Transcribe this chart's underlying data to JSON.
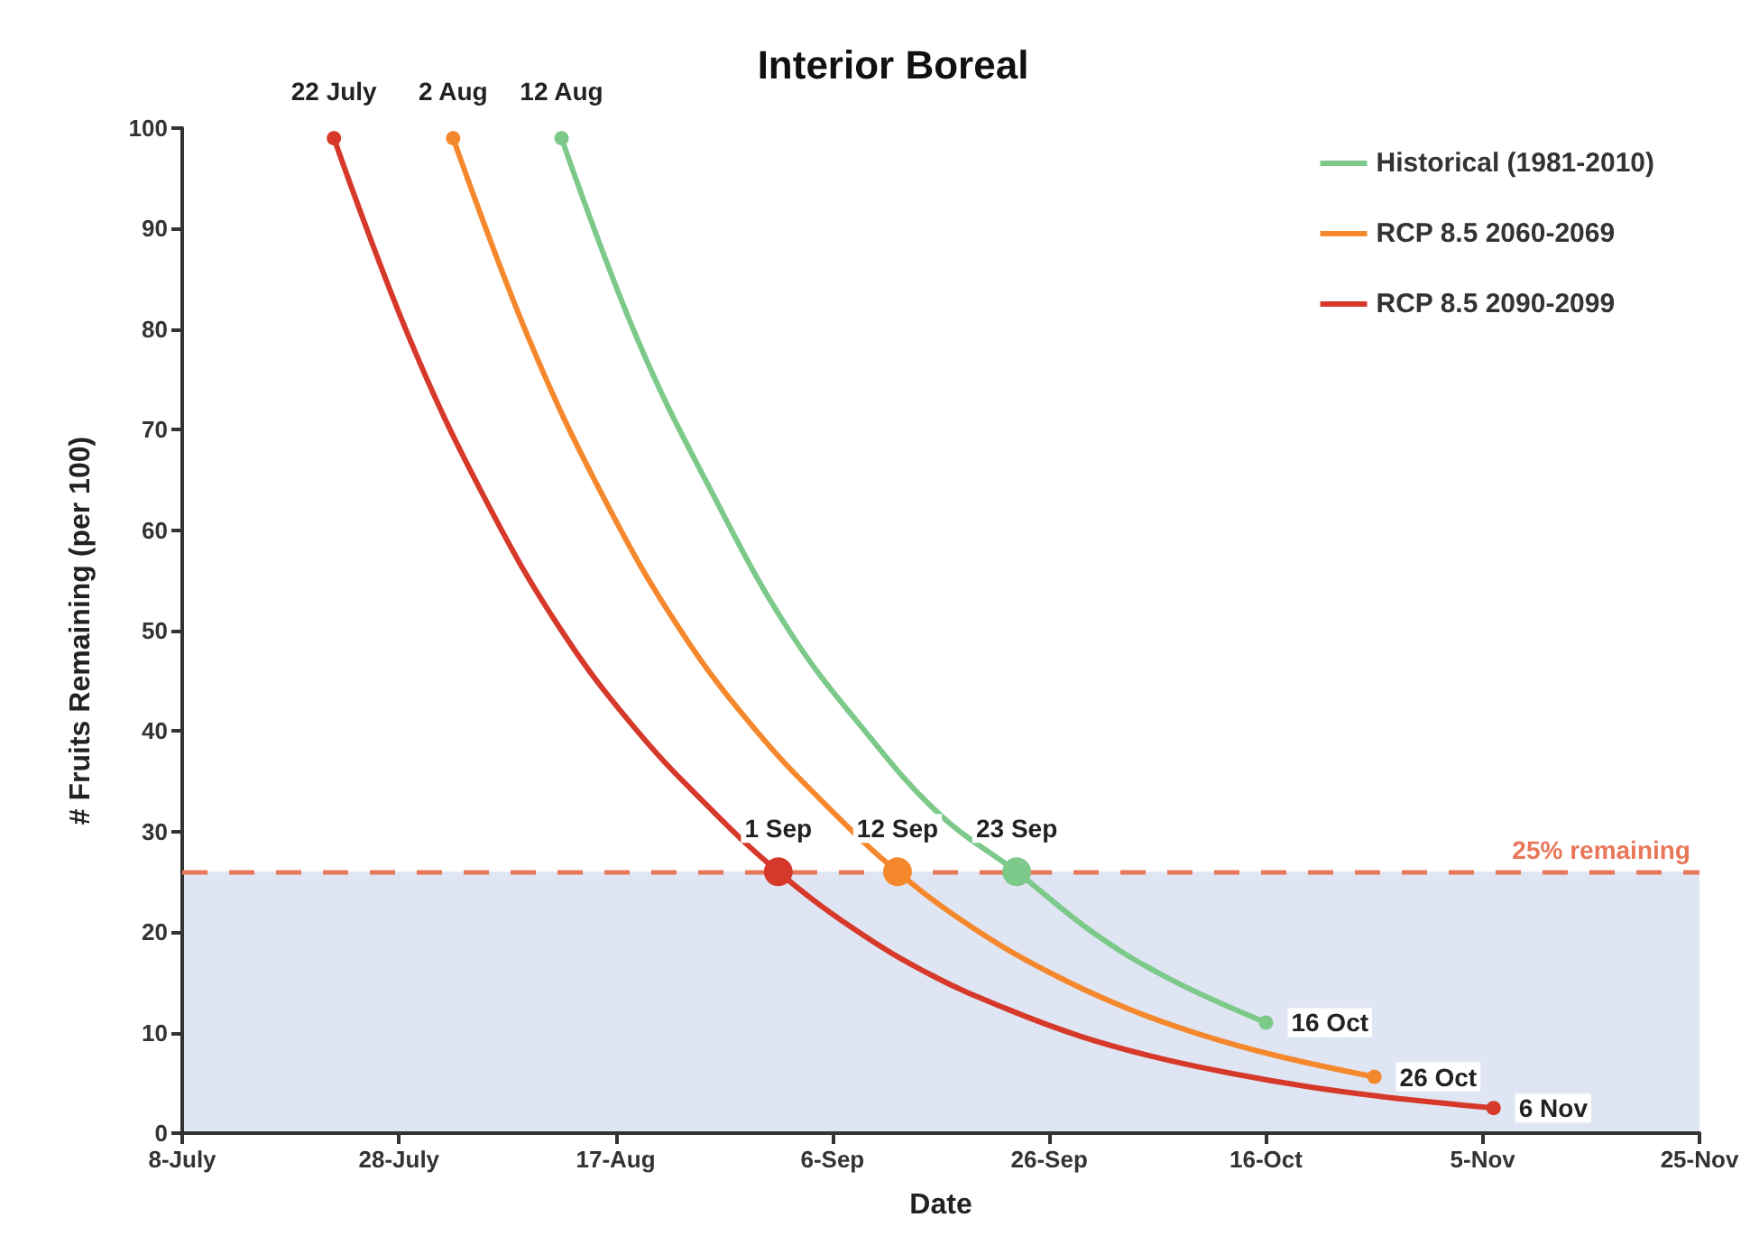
{
  "chart_data": {
    "type": "line",
    "title": "Interior Boreal",
    "xlabel": "Date",
    "ylabel": "# Fruits Remaining (per 100)",
    "xlim": [
      "--07-08",
      "--11-25"
    ],
    "xticks": [
      {
        "value": "--07-08",
        "label": "8-July"
      },
      {
        "value": "--07-28",
        "label": "28-July"
      },
      {
        "value": "--08-17",
        "label": "17-Aug"
      },
      {
        "value": "--09-06",
        "label": "6-Sep"
      },
      {
        "value": "--09-26",
        "label": "26-Sep"
      },
      {
        "value": "--10-16",
        "label": "16-Oct"
      },
      {
        "value": "--11-05",
        "label": "5-Nov"
      },
      {
        "value": "--11-25",
        "label": "25-Nov"
      }
    ],
    "ylim": [
      0,
      100
    ],
    "yticks": [
      0,
      10,
      20,
      30,
      40,
      50,
      60,
      70,
      80,
      90,
      100
    ],
    "grid": false,
    "legend": "top right",
    "line_style": "solid",
    "series": [
      {
        "name": "Historical (1981-2010)",
        "color": "#7cc98a",
        "x": [
          "--08-12",
          "--08-19",
          "--08-26",
          "--09-02",
          "--09-09",
          "--09-16",
          "--09-23",
          "--09-30",
          "--10-07",
          "--10-16"
        ],
        "values": [
          99,
          79,
          63.5,
          50,
          40,
          31.6,
          26,
          20,
          15.4,
          11
        ]
      },
      {
        "name": "RCP 8.5 2060-2069",
        "color": "#f5882c",
        "x": [
          "--08-02",
          "--08-09",
          "--08-16",
          "--08-23",
          "--08-30",
          "--09-06",
          "--09-12",
          "--09-19",
          "--09-26",
          "--10-03",
          "--10-10",
          "--10-17",
          "--10-26"
        ],
        "values": [
          99,
          79,
          63,
          50,
          40,
          32,
          26,
          20.4,
          16,
          12.5,
          9.8,
          7.7,
          5.6
        ]
      },
      {
        "name": "RCP 8.5 2090-2099",
        "color": "#d6392a",
        "x": [
          "--07-22",
          "--07-29",
          "--08-05",
          "--08-12",
          "--08-19",
          "--08-26",
          "--09-01",
          "--09-08",
          "--09-15",
          "--09-22",
          "--09-29",
          "--10-06",
          "--10-13",
          "--10-20",
          "--10-27",
          "--11-06"
        ],
        "values": [
          99,
          79,
          63,
          50,
          40,
          32,
          26,
          20.3,
          15.8,
          12.4,
          9.6,
          7.5,
          5.9,
          4.6,
          3.6,
          2.5
        ]
      }
    ],
    "ref_lines": [
      {
        "axis": "y",
        "value": 26,
        "label": "25% remaining",
        "color": "#e8775a",
        "line_style": "dashed"
      }
    ],
    "bands": [
      {
        "axis": "y",
        "from": 0,
        "to": 26,
        "color": "#dfe5f3"
      }
    ],
    "annotations": [
      {
        "text": "22 July",
        "x": "--07-22",
        "y": 99
      },
      {
        "text": "2 Aug",
        "x": "--08-02",
        "y": 99
      },
      {
        "text": "12 Aug",
        "x": "--08-12",
        "y": 99
      },
      {
        "text": "1 Sep",
        "x": "--09-01",
        "y": 26
      },
      {
        "text": "12 Sep",
        "x": "--09-12",
        "y": 26
      },
      {
        "text": "23 Sep",
        "x": "--09-23",
        "y": 26
      },
      {
        "text": "16 Oct",
        "x": "--10-16",
        "y": 11
      },
      {
        "text": "26 Oct",
        "x": "--10-26",
        "y": 5.6
      },
      {
        "text": "6 Nov",
        "x": "--11-06",
        "y": 2.5
      }
    ]
  }
}
